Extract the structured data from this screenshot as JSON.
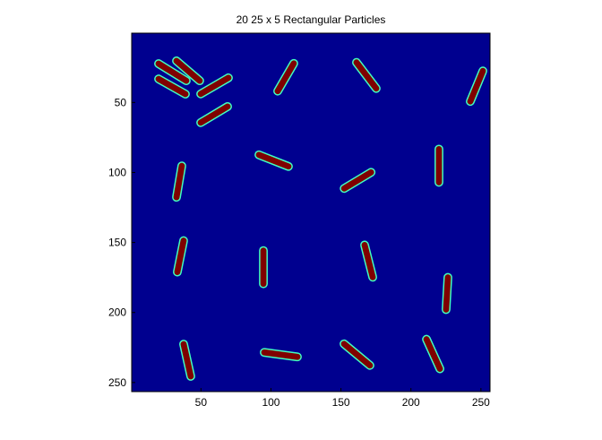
{
  "chart_data": {
    "type": "particles",
    "title": "20 25 x 5 Rectangular Particles",
    "xlim": [
      0.5,
      256.5
    ],
    "ylim": [
      0.5,
      256.5
    ],
    "y_reversed": true,
    "xticks": [
      50,
      100,
      150,
      200,
      250
    ],
    "yticks": [
      50,
      100,
      150,
      200,
      250
    ],
    "background_color": "#00008f",
    "particle_color": "#800000",
    "edge_color": "#40ffc0",
    "particle_width": 5,
    "segments": [
      [
        19.7,
        22.3,
        39.5,
        34.5
      ],
      [
        19.7,
        33.2,
        38.9,
        44.0
      ],
      [
        32.5,
        20.3,
        49.1,
        34.5
      ],
      [
        49.8,
        43.9,
        69.6,
        32.4
      ],
      [
        49.8,
        64.4,
        69.0,
        52.9
      ],
      [
        104.8,
        41.9,
        116.3,
        22.1
      ],
      [
        161.1,
        21.4,
        175.2,
        40.0
      ],
      [
        242.4,
        49.3,
        251.4,
        27.5
      ],
      [
        91.4,
        87.4,
        112.5,
        95.7
      ],
      [
        152.3,
        111.4,
        171.5,
        99.9
      ],
      [
        220.0,
        83.3,
        220.0,
        107.0
      ],
      [
        36.3,
        95.3,
        32.5,
        117.7
      ],
      [
        37.6,
        148.7,
        33.1,
        171.1
      ],
      [
        94.6,
        155.8,
        94.6,
        179.5
      ],
      [
        166.9,
        151.8,
        172.7,
        174.8
      ],
      [
        226.4,
        174.9,
        225.1,
        197.9
      ],
      [
        37.6,
        222.6,
        42.7,
        245.6
      ],
      [
        95.2,
        228.5,
        118.9,
        231.7
      ],
      [
        152.2,
        222.4,
        170.7,
        237.8
      ],
      [
        211.1,
        219.1,
        220.7,
        240.2
      ]
    ]
  }
}
